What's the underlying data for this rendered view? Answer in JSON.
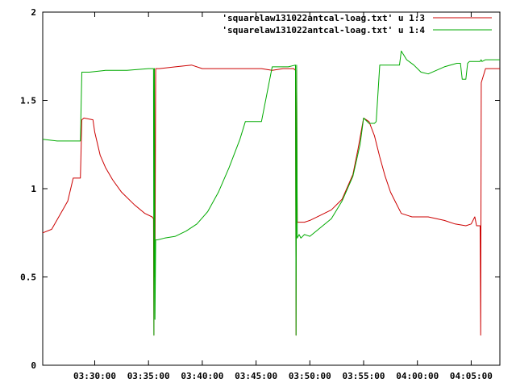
{
  "chart_data": {
    "type": "line",
    "title": "",
    "xlabel": "",
    "ylabel": "",
    "xlim": [
      "03:25:10",
      "04:07:40"
    ],
    "ylim": [
      0,
      2
    ],
    "grid": false,
    "legend_placement": "top-right",
    "x_ticks": [
      "03:30:00",
      "03:35:00",
      "03:40:00",
      "03:45:00",
      "03:50:00",
      "03:55:00",
      "04:00:00",
      "04:05:00"
    ],
    "y_ticks": [
      "0",
      "0.5",
      "1",
      "1.5",
      "2"
    ],
    "series": [
      {
        "name": "'squarelaw131022antcal-loag.txt' u 1:3",
        "color": "#cc0000",
        "x": [
          "03:25:10",
          "03:26:00",
          "03:26:45",
          "03:27:30",
          "03:28:00",
          "03:28:40",
          "03:28:48",
          "03:29:00",
          "03:29:50",
          "03:30:00",
          "03:30:30",
          "03:31:00",
          "03:31:40",
          "03:32:30",
          "03:33:40",
          "03:34:40",
          "03:35:20",
          "03:35:28",
          "03:35:30",
          "03:35:33",
          "03:35:36",
          "03:35:40",
          "03:36:00",
          "03:37:30",
          "03:39:00",
          "03:40:00",
          "03:41:30",
          "03:43:00",
          "03:44:00",
          "03:45:30",
          "03:46:30",
          "03:47:30",
          "03:48:30",
          "03:48:40",
          "03:48:43",
          "03:48:46",
          "03:48:50",
          "03:49:30",
          "03:50:00",
          "03:51:00",
          "03:52:00",
          "03:53:00",
          "03:54:00",
          "03:54:30",
          "03:55:00",
          "03:55:30",
          "03:56:00",
          "03:56:30",
          "03:57:00",
          "03:57:30",
          "03:58:00",
          "03:58:30",
          "03:59:30",
          "04:01:00",
          "04:02:30",
          "04:03:30",
          "04:04:30",
          "04:05:00",
          "04:05:20",
          "04:05:30",
          "04:05:50",
          "04:05:53",
          "04:05:56",
          "04:06:20",
          "04:07:40"
        ],
        "values": [
          0.75,
          0.77,
          0.85,
          0.93,
          1.06,
          1.06,
          1.39,
          1.4,
          1.39,
          1.32,
          1.19,
          1.12,
          1.05,
          0.98,
          0.91,
          0.86,
          0.84,
          0.83,
          0.17,
          1.68,
          0.5,
          1.68,
          1.68,
          1.69,
          1.7,
          1.68,
          1.68,
          1.68,
          1.68,
          1.68,
          1.67,
          1.68,
          1.68,
          1.67,
          0.17,
          1.67,
          0.81,
          0.81,
          0.82,
          0.85,
          0.88,
          0.94,
          1.08,
          1.23,
          1.4,
          1.38,
          1.3,
          1.18,
          1.07,
          0.98,
          0.92,
          0.86,
          0.84,
          0.84,
          0.82,
          0.8,
          0.79,
          0.8,
          0.84,
          0.79,
          0.79,
          0.17,
          1.6,
          1.68,
          1.68
        ]
      },
      {
        "name": "'squarelaw131022antcal-loag.txt' u 1:4",
        "color": "#00aa00",
        "x": [
          "03:25:10",
          "03:26:30",
          "03:27:30",
          "03:28:20",
          "03:28:40",
          "03:28:48",
          "03:29:30",
          "03:31:00",
          "03:33:00",
          "03:35:00",
          "03:35:28",
          "03:35:30",
          "03:35:33",
          "03:35:36",
          "03:35:40",
          "03:35:50",
          "03:36:30",
          "03:37:30",
          "03:38:30",
          "03:39:30",
          "03:40:30",
          "03:41:30",
          "03:42:30",
          "03:43:30",
          "03:44:00",
          "03:44:30",
          "03:45:00",
          "03:45:30",
          "03:46:30",
          "03:48:00",
          "03:48:40",
          "03:48:43",
          "03:48:46",
          "03:48:50",
          "03:49:00",
          "03:49:10",
          "03:49:30",
          "03:50:00",
          "03:51:00",
          "03:52:00",
          "03:53:00",
          "03:54:00",
          "03:54:40",
          "03:55:00",
          "03:55:30",
          "03:56:00",
          "03:56:10",
          "03:56:30",
          "03:57:30",
          "03:58:20",
          "03:58:30",
          "03:59:00",
          "03:59:40",
          "04:00:20",
          "04:01:00",
          "04:02:30",
          "04:03:40",
          "04:04:00",
          "04:04:10",
          "04:04:30",
          "04:04:40",
          "04:04:50",
          "04:05:50",
          "04:05:55",
          "04:06:00",
          "04:06:20",
          "04:07:40"
        ],
        "values": [
          1.28,
          1.27,
          1.27,
          1.27,
          1.27,
          1.66,
          1.66,
          1.67,
          1.67,
          1.68,
          1.68,
          0.17,
          1.68,
          0.26,
          0.71,
          0.71,
          0.72,
          0.73,
          0.76,
          0.8,
          0.87,
          0.98,
          1.12,
          1.28,
          1.38,
          1.38,
          1.38,
          1.38,
          1.69,
          1.69,
          1.7,
          0.17,
          1.7,
          0.72,
          0.74,
          0.72,
          0.74,
          0.73,
          0.78,
          0.83,
          0.93,
          1.07,
          1.25,
          1.4,
          1.37,
          1.37,
          1.38,
          1.7,
          1.7,
          1.7,
          1.78,
          1.73,
          1.7,
          1.66,
          1.65,
          1.69,
          1.71,
          1.71,
          1.62,
          1.62,
          1.71,
          1.72,
          1.72,
          1.73,
          1.72,
          1.73,
          1.73
        ]
      }
    ]
  }
}
